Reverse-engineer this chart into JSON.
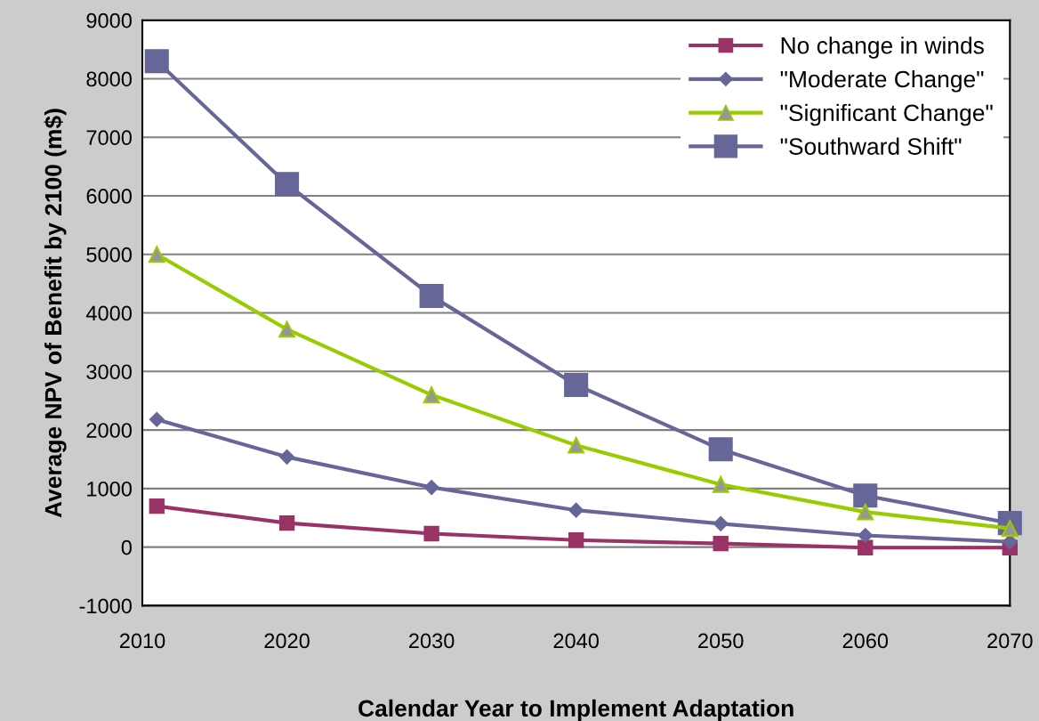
{
  "chart_data": {
    "type": "line",
    "xlabel": "Calendar Year to Implement Adaptation",
    "ylabel": "Average NPV of Benefit by 2100 (m$)",
    "x": [
      2011,
      2020,
      2030,
      2040,
      2050,
      2060,
      2070
    ],
    "series": [
      {
        "name": "No change in winds",
        "color": "#993366",
        "marker": "square",
        "values": [
          700,
          410,
          230,
          120,
          60,
          -10,
          -10
        ]
      },
      {
        "name": "\"Moderate Change\"",
        "color": "#666699",
        "marker": "diamond",
        "values": [
          2180,
          1540,
          1020,
          630,
          400,
          200,
          90
        ]
      },
      {
        "name": "\"Significant Change\"",
        "color": "#99cc00",
        "colors": [
          "#969696",
          "#969696",
          "#969696",
          "#969696",
          "#969696",
          "#969696",
          "#969696"
        ],
        "marker": "triangle",
        "values": [
          5000,
          3720,
          2600,
          1740,
          1070,
          600,
          320
        ]
      },
      {
        "name": "\"Southward Shift\"",
        "color": "#666699",
        "marker": "square",
        "values": [
          8300,
          6200,
          4290,
          2770,
          1670,
          880,
          410
        ]
      }
    ],
    "xlim": [
      2010,
      2070
    ],
    "xticks": [
      2010,
      2020,
      2030,
      2040,
      2050,
      2060,
      2070
    ],
    "ylim": [
      -1000,
      9000
    ],
    "yticks": [
      -1000,
      0,
      1000,
      2000,
      3000,
      4000,
      5000,
      6000,
      7000,
      8000,
      9000
    ],
    "grid": "y",
    "legend": "top right",
    "line_style": "solid"
  }
}
